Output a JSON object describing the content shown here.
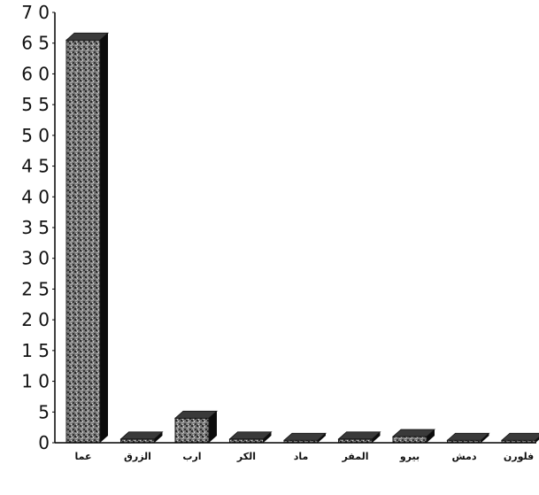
{
  "chart_data": {
    "type": "bar",
    "categories": [
      "عما",
      "الزرق",
      "ارب",
      "الكر",
      "ماد",
      "المفر",
      "بيرو",
      "دمش",
      "فلورن"
    ],
    "values": [
      65.5,
      0.6,
      4,
      0.6,
      0.4,
      0.6,
      1,
      0.4,
      0.4
    ],
    "ylim": [
      0,
      70
    ],
    "yticks": [
      "0",
      "5",
      "1 0",
      "1 5",
      "2 0",
      "2 5",
      "3 0",
      "3 5",
      "4 0",
      "4 5",
      "5 0",
      "5 5",
      "6 0",
      "6 5",
      "7 0"
    ],
    "title": "",
    "xlabel": "",
    "ylabel": "",
    "grid": false,
    "legend": "none",
    "bar_color": "#6a6a6a",
    "bar_side_color": "#0c0c0c",
    "bar_top_color": "#3a3a3a",
    "axis_color": "#000000"
  }
}
